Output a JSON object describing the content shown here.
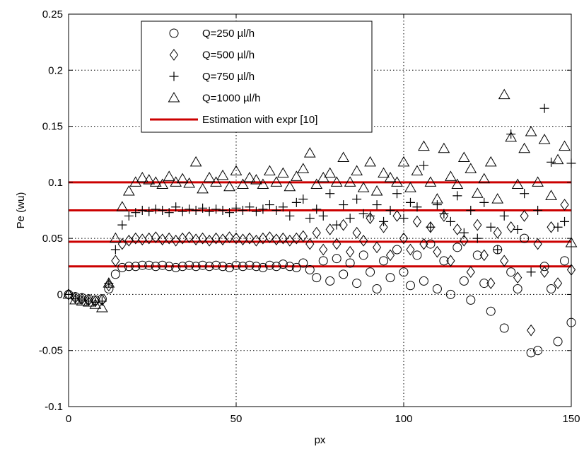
{
  "chart_data": {
    "type": "scatter",
    "title": "",
    "xlabel": "px",
    "ylabel": "Pe (wu)",
    "xlim": [
      0,
      150
    ],
    "ylim": [
      -0.1,
      0.25
    ],
    "x_ticks": [
      0,
      50,
      100,
      150
    ],
    "x_tick_labels": [
      "0",
      "50",
      "100",
      "150"
    ],
    "y_ticks": [
      -0.1,
      -0.05,
      0,
      0.05,
      0.1,
      0.15,
      0.2,
      0.25
    ],
    "y_tick_labels": [
      "-0.1",
      "-0.05",
      "0",
      "0.05",
      "0.1",
      "0.15",
      "0.2",
      "0.25"
    ],
    "grid": true,
    "legend_position": "top-left",
    "series": [
      {
        "name": "Q=250 µl/h",
        "marker": "circle",
        "color": "#000000",
        "x": [
          0,
          2,
          4,
          6,
          8,
          10,
          12,
          14,
          16,
          18,
          20,
          22,
          24,
          26,
          28,
          30,
          32,
          34,
          36,
          38,
          40,
          42,
          44,
          46,
          48,
          50,
          52,
          54,
          56,
          58,
          60,
          62,
          64,
          66,
          68,
          70,
          72,
          74,
          76,
          78,
          80,
          82,
          84,
          86,
          88,
          90,
          92,
          94,
          96,
          98,
          100,
          102,
          104,
          106,
          108,
          110,
          112,
          114,
          116,
          118,
          120,
          122,
          124,
          126,
          128,
          130,
          132,
          134,
          136,
          138,
          140,
          142,
          144,
          146,
          148,
          150
        ],
        "y": [
          0,
          -0.002,
          -0.003,
          -0.004,
          -0.005,
          -0.004,
          0.005,
          0.018,
          0.024,
          0.025,
          0.025,
          0.026,
          0.026,
          0.025,
          0.026,
          0.025,
          0.024,
          0.025,
          0.026,
          0.025,
          0.026,
          0.025,
          0.026,
          0.025,
          0.024,
          0.026,
          0.025,
          0.026,
          0.025,
          0.024,
          0.026,
          0.025,
          0.027,
          0.025,
          0.024,
          0.028,
          0.022,
          0.015,
          0.03,
          0.012,
          0.032,
          0.018,
          0.028,
          0.01,
          0.035,
          0.02,
          0.005,
          0.03,
          0.015,
          0.04,
          0.02,
          0.008,
          0.035,
          0.012,
          0.045,
          0.005,
          0.03,
          0.0,
          0.042,
          0.012,
          -0.005,
          0.035,
          0.01,
          -0.015,
          0.04,
          -0.03,
          0.02,
          0.005,
          0.05,
          -0.052,
          -0.05,
          0.025,
          0.005,
          -0.042,
          0.03,
          -0.025
        ]
      },
      {
        "name": "Q=500 µl/h",
        "marker": "diamond",
        "color": "#000000",
        "x": [
          0,
          2,
          4,
          6,
          8,
          10,
          12,
          14,
          16,
          18,
          20,
          22,
          24,
          26,
          28,
          30,
          32,
          34,
          36,
          38,
          40,
          42,
          44,
          46,
          48,
          50,
          52,
          54,
          56,
          58,
          60,
          62,
          64,
          66,
          68,
          70,
          72,
          74,
          76,
          78,
          80,
          82,
          84,
          86,
          88,
          90,
          92,
          94,
          96,
          98,
          100,
          102,
          104,
          106,
          108,
          110,
          112,
          114,
          116,
          118,
          120,
          122,
          124,
          126,
          128,
          130,
          132,
          134,
          136,
          138,
          140,
          142,
          144,
          146,
          148,
          150
        ],
        "y": [
          0,
          -0.003,
          -0.004,
          -0.005,
          -0.006,
          -0.005,
          0.008,
          0.03,
          0.045,
          0.048,
          0.05,
          0.049,
          0.05,
          0.051,
          0.049,
          0.05,
          0.048,
          0.05,
          0.051,
          0.049,
          0.05,
          0.048,
          0.05,
          0.049,
          0.051,
          0.05,
          0.049,
          0.05,
          0.048,
          0.05,
          0.051,
          0.049,
          0.05,
          0.048,
          0.05,
          0.052,
          0.045,
          0.055,
          0.04,
          0.058,
          0.045,
          0.062,
          0.038,
          0.055,
          0.048,
          0.068,
          0.042,
          0.06,
          0.035,
          0.07,
          0.05,
          0.04,
          0.065,
          0.045,
          0.06,
          0.038,
          0.07,
          0.03,
          0.058,
          0.048,
          0.02,
          0.062,
          0.035,
          0.01,
          0.055,
          0.03,
          0.06,
          0.015,
          0.07,
          -0.032,
          0.045,
          0.02,
          0.06,
          0.01,
          0.08,
          0.022
        ]
      },
      {
        "name": "Q=750 µl/h",
        "marker": "plus",
        "color": "#000000",
        "x": [
          0,
          2,
          4,
          6,
          8,
          10,
          12,
          14,
          16,
          18,
          20,
          22,
          24,
          26,
          28,
          30,
          32,
          34,
          36,
          38,
          40,
          42,
          44,
          46,
          48,
          50,
          52,
          54,
          56,
          58,
          60,
          62,
          64,
          66,
          68,
          70,
          72,
          74,
          76,
          78,
          80,
          82,
          84,
          86,
          88,
          90,
          92,
          94,
          96,
          98,
          100,
          102,
          104,
          106,
          108,
          110,
          112,
          114,
          116,
          118,
          120,
          122,
          124,
          126,
          128,
          130,
          132,
          134,
          136,
          138,
          140,
          142,
          144,
          146,
          148,
          150
        ],
        "y": [
          0,
          -0.004,
          -0.005,
          -0.006,
          -0.007,
          -0.006,
          0.01,
          0.04,
          0.062,
          0.07,
          0.073,
          0.075,
          0.074,
          0.076,
          0.075,
          0.073,
          0.078,
          0.074,
          0.076,
          0.075,
          0.077,
          0.074,
          0.076,
          0.075,
          0.073,
          0.077,
          0.075,
          0.078,
          0.074,
          0.076,
          0.08,
          0.075,
          0.078,
          0.07,
          0.082,
          0.085,
          0.068,
          0.076,
          0.07,
          0.09,
          0.062,
          0.08,
          0.068,
          0.085,
          0.072,
          0.07,
          0.08,
          0.065,
          0.075,
          0.09,
          0.068,
          0.082,
          0.078,
          0.115,
          0.06,
          0.08,
          0.072,
          0.065,
          0.088,
          0.055,
          0.075,
          0.05,
          0.082,
          0.06,
          0.04,
          0.07,
          0.143,
          0.058,
          0.09,
          0.02,
          0.075,
          0.166,
          0.118,
          0.06,
          0.065,
          0.117
        ]
      },
      {
        "name": "Q=1000 µl/h",
        "marker": "triangle",
        "color": "#000000",
        "x": [
          0,
          2,
          4,
          6,
          8,
          10,
          12,
          14,
          16,
          18,
          20,
          22,
          24,
          26,
          28,
          30,
          32,
          34,
          36,
          38,
          40,
          42,
          44,
          46,
          48,
          50,
          52,
          54,
          56,
          58,
          60,
          62,
          64,
          66,
          68,
          70,
          72,
          74,
          76,
          78,
          80,
          82,
          84,
          86,
          88,
          90,
          92,
          94,
          96,
          98,
          100,
          102,
          104,
          106,
          108,
          110,
          112,
          114,
          116,
          118,
          120,
          122,
          124,
          126,
          128,
          130,
          132,
          134,
          136,
          138,
          140,
          142,
          144,
          146,
          148,
          150
        ],
        "y": [
          0,
          -0.005,
          -0.006,
          -0.007,
          -0.009,
          -0.012,
          0.01,
          0.05,
          0.078,
          0.092,
          0.1,
          0.104,
          0.102,
          0.1,
          0.098,
          0.105,
          0.1,
          0.103,
          0.099,
          0.118,
          0.094,
          0.104,
          0.1,
          0.106,
          0.096,
          0.11,
          0.098,
          0.104,
          0.102,
          0.098,
          0.11,
          0.1,
          0.108,
          0.096,
          0.105,
          0.112,
          0.126,
          0.098,
          0.104,
          0.108,
          0.1,
          0.122,
          0.1,
          0.11,
          0.095,
          0.118,
          0.092,
          0.108,
          0.104,
          0.1,
          0.118,
          0.095,
          0.11,
          0.132,
          0.1,
          0.085,
          0.13,
          0.105,
          0.098,
          0.122,
          0.112,
          0.09,
          0.103,
          0.118,
          0.085,
          0.178,
          0.14,
          0.098,
          0.13,
          0.145,
          0.1,
          0.138,
          0.088,
          0.12,
          0.132,
          0.046
        ]
      }
    ],
    "reference_lines": {
      "name": "Estimation with expr [10]",
      "color": "#cc0000",
      "y": [
        0.1,
        0.075,
        0.047,
        0.025
      ]
    }
  }
}
